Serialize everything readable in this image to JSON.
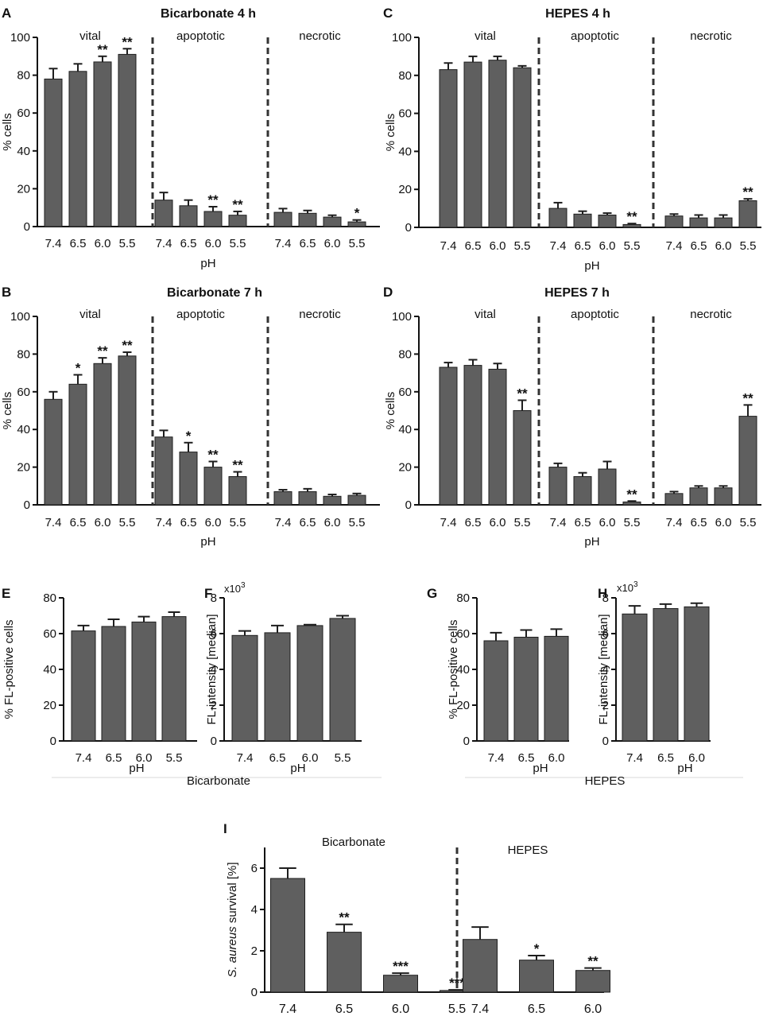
{
  "colors": {
    "bar": "#5f5f5f",
    "bar_stroke": "#1e1e1e",
    "axis": "#111111",
    "divider": "#333333",
    "caption_line": "#d8d8d8",
    "text": "#111111"
  },
  "chart_data": [
    {
      "id": "A",
      "panel_label": "A",
      "type": "bar",
      "title": "Bicarbonate 4 h",
      "xlabel": "pH",
      "ylabel": "% cells",
      "ylim": [
        0,
        100
      ],
      "yticks": [
        0,
        20,
        40,
        60,
        80,
        100
      ],
      "groups": [
        {
          "name": "vital",
          "categories": [
            "7.4",
            "6.5",
            "6.0",
            "5.5"
          ],
          "values": [
            78,
            82,
            87,
            91
          ],
          "errors": [
            5.5,
            4,
            3,
            3
          ],
          "annotations": [
            "",
            "",
            "**",
            "**"
          ]
        },
        {
          "name": "apoptotic",
          "categories": [
            "7.4",
            "6.5",
            "6.0",
            "5.5"
          ],
          "values": [
            14,
            11,
            8,
            6
          ],
          "errors": [
            4,
            3,
            2.5,
            2
          ],
          "annotations": [
            "",
            "",
            "**",
            "**"
          ]
        },
        {
          "name": "necrotic",
          "categories": [
            "7.4",
            "6.5",
            "6.0",
            "5.5"
          ],
          "values": [
            7.5,
            7,
            5,
            2.5
          ],
          "errors": [
            2,
            1.5,
            1,
            1
          ],
          "annotations": [
            "",
            "",
            "",
            "*"
          ]
        }
      ]
    },
    {
      "id": "B",
      "panel_label": "B",
      "type": "bar",
      "title": "Bicarbonate 7 h",
      "xlabel": "pH",
      "ylabel": "% cells",
      "ylim": [
        0,
        100
      ],
      "yticks": [
        0,
        20,
        40,
        60,
        80,
        100
      ],
      "groups": [
        {
          "name": "vital",
          "categories": [
            "7.4",
            "6.5",
            "6.0",
            "5.5"
          ],
          "values": [
            56,
            64,
            75,
            79
          ],
          "errors": [
            4,
            5,
            3,
            2
          ],
          "annotations": [
            "",
            "*",
            "**",
            "**"
          ]
        },
        {
          "name": "apoptotic",
          "categories": [
            "7.4",
            "6.5",
            "6.0",
            "5.5"
          ],
          "values": [
            36,
            28,
            20,
            15
          ],
          "errors": [
            3.5,
            5,
            3,
            2.5
          ],
          "annotations": [
            "",
            "*",
            "**",
            "**"
          ]
        },
        {
          "name": "necrotic",
          "categories": [
            "7.4",
            "6.5",
            "6.0",
            "5.5"
          ],
          "values": [
            7,
            7,
            4.5,
            5
          ],
          "errors": [
            1,
            1.5,
            1,
            1
          ],
          "annotations": [
            "",
            "",
            "",
            ""
          ]
        }
      ]
    },
    {
      "id": "C",
      "panel_label": "C",
      "type": "bar",
      "title": "HEPES 4 h",
      "xlabel": "pH",
      "ylabel": "% cells",
      "ylim": [
        0,
        100
      ],
      "yticks": [
        0,
        20,
        40,
        60,
        80,
        100
      ],
      "groups": [
        {
          "name": "vital",
          "categories": [
            "7.4",
            "6.5",
            "6.0",
            "5.5"
          ],
          "values": [
            83,
            87,
            88,
            84
          ],
          "errors": [
            3.5,
            3,
            2,
            1
          ],
          "annotations": [
            "",
            "",
            "",
            ""
          ]
        },
        {
          "name": "apoptotic",
          "categories": [
            "7.4",
            "6.5",
            "6.0",
            "5.5"
          ],
          "values": [
            10,
            7,
            6.5,
            1.5
          ],
          "errors": [
            3,
            1.5,
            1,
            0.5
          ],
          "annotations": [
            "",
            "",
            "",
            "**"
          ]
        },
        {
          "name": "necrotic",
          "categories": [
            "7.4",
            "6.5",
            "6.0",
            "5.5"
          ],
          "values": [
            6,
            5,
            5,
            14
          ],
          "errors": [
            1,
            1.5,
            1.5,
            1
          ],
          "annotations": [
            "",
            "",
            "",
            "**"
          ]
        }
      ]
    },
    {
      "id": "D",
      "panel_label": "D",
      "type": "bar",
      "title": "HEPES 7 h",
      "xlabel": "pH",
      "ylabel": "% cells",
      "ylim": [
        0,
        100
      ],
      "yticks": [
        0,
        20,
        40,
        60,
        80,
        100
      ],
      "groups": [
        {
          "name": "vital",
          "categories": [
            "7.4",
            "6.5",
            "6.0",
            "5.5"
          ],
          "values": [
            73,
            74,
            72,
            50
          ],
          "errors": [
            2.5,
            3,
            3,
            5.5
          ],
          "annotations": [
            "",
            "",
            "",
            "**"
          ]
        },
        {
          "name": "apoptotic",
          "categories": [
            "7.4",
            "6.5",
            "6.0",
            "5.5"
          ],
          "values": [
            20,
            15,
            19,
            1.5
          ],
          "errors": [
            2,
            2,
            4,
            0.5
          ],
          "annotations": [
            "",
            "",
            "",
            "**"
          ]
        },
        {
          "name": "necrotic",
          "categories": [
            "7.4",
            "6.5",
            "6.0",
            "5.5"
          ],
          "values": [
            6,
            9,
            9,
            47
          ],
          "errors": [
            1,
            1,
            1,
            6
          ],
          "annotations": [
            "",
            "",
            "",
            "**"
          ]
        }
      ]
    },
    {
      "id": "E",
      "panel_label": "E",
      "type": "bar",
      "title": "",
      "xlabel": "pH",
      "ylabel": "% FL-positive cells",
      "ylim": [
        0,
        80
      ],
      "yticks": [
        0,
        20,
        40,
        60,
        80
      ],
      "categories": [
        "7.4",
        "6.5",
        "6.0",
        "5.5"
      ],
      "values": [
        61.5,
        64,
        66.5,
        69.5
      ],
      "errors": [
        3,
        4,
        3,
        2.5
      ]
    },
    {
      "id": "F",
      "panel_label": "F",
      "type": "bar",
      "title": "",
      "xlabel": "pH",
      "ylabel": "FL-intensity [median]",
      "multiplier": "x10",
      "multiplier_exp": "3",
      "ylim": [
        0,
        8
      ],
      "yticks": [
        0,
        2,
        4,
        6,
        8
      ],
      "categories": [
        "7.4",
        "6.5",
        "6.0",
        "5.5"
      ],
      "values": [
        5.9,
        6.05,
        6.45,
        6.85
      ],
      "errors": [
        0.25,
        0.4,
        0.05,
        0.15
      ]
    },
    {
      "id": "G",
      "panel_label": "G",
      "type": "bar",
      "title": "",
      "xlabel": "pH",
      "ylabel": "% FL-positive cells",
      "ylim": [
        0,
        80
      ],
      "yticks": [
        0,
        20,
        40,
        60,
        80
      ],
      "categories": [
        "7.4",
        "6.5",
        "6.0"
      ],
      "values": [
        56,
        58,
        58.5
      ],
      "errors": [
        4.5,
        4,
        4
      ]
    },
    {
      "id": "H",
      "panel_label": "H",
      "type": "bar",
      "title": "",
      "xlabel": "pH",
      "ylabel": "FL-intensity [median]",
      "multiplier": "x10",
      "multiplier_exp": "3",
      "ylim": [
        0,
        8
      ],
      "yticks": [
        0,
        2,
        4,
        6,
        8
      ],
      "categories": [
        "7.4",
        "6.5",
        "6.0"
      ],
      "values": [
        7.1,
        7.4,
        7.5
      ],
      "errors": [
        0.45,
        0.25,
        0.2
      ]
    },
    {
      "id": "I",
      "panel_label": "I",
      "type": "bar",
      "title": "",
      "xlabel": "",
      "ylabel_italic": "S. aureus",
      "ylabel_rest": " survival [%]",
      "ylim": [
        0,
        7
      ],
      "yticks": [
        0,
        2,
        4,
        6
      ],
      "groups": [
        {
          "name": "Bicarbonate",
          "categories": [
            "7.4",
            "6.5",
            "6.0",
            "5.5"
          ],
          "values": [
            5.5,
            2.9,
            0.82,
            0.08
          ],
          "errors": [
            0.5,
            0.38,
            0.1,
            0.03
          ],
          "annotations": [
            "",
            "**",
            "***",
            "***"
          ]
        },
        {
          "name": "HEPES",
          "categories": [
            "7.4",
            "6.5",
            "6.0"
          ],
          "values": [
            2.55,
            1.55,
            1.05
          ],
          "errors": [
            0.6,
            0.22,
            0.12
          ],
          "annotations": [
            "",
            "*",
            "**"
          ]
        }
      ]
    }
  ],
  "captions": {
    "bicarbonate": "Bicarbonate",
    "hepes": "HEPES"
  }
}
